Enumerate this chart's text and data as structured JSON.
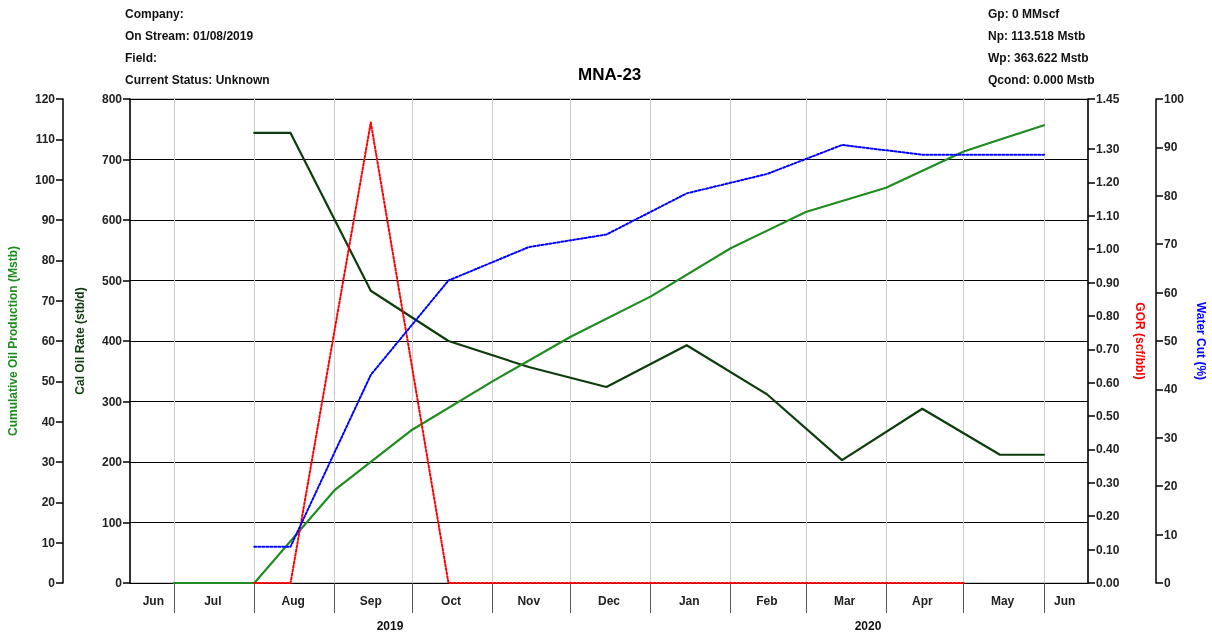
{
  "chart_data": [
    {
      "type": "line",
      "title": "MNA-23",
      "annotations": [
        "Company:",
        "On Stream: 01/08/2019",
        "Field:",
        "Current Status: Unknown",
        "Gp: 0 MMscf",
        "Np: 113.518 Mstb",
        "Wp: 363.622 Mstb",
        "Qcond: 0.000 Mstb",
        "2019",
        "2020"
      ],
      "ylabel": "Cal Oil Rate (stb/d)",
      "y2label": "GOR (scf/bbl)",
      "y3label": "Cumulative Oil Production (Mstb)",
      "xlim": [
        "2019-06-14",
        "2020-06-18"
      ],
      "xticks": [
        {
          "value": "2019-07-01",
          "label": null
        },
        {
          "value": "2019-08-01",
          "label": null
        },
        {
          "value": "2019-09-01",
          "label": null
        },
        {
          "value": "2019-10-01",
          "label": null
        },
        {
          "value": "2019-11-01",
          "label": null
        },
        {
          "value": "2019-12-01",
          "label": null
        },
        {
          "value": "2020-01-01",
          "label": null
        },
        {
          "value": "2020-02-01",
          "label": null
        },
        {
          "value": "2020-03-01",
          "label": null
        },
        {
          "value": "2020-04-01",
          "label": null
        },
        {
          "value": "2020-05-01",
          "label": null
        },
        {
          "value": "2020-06-01",
          "label": null
        },
        {
          "value": "2019-06-23",
          "label": "Jun"
        },
        {
          "value": "2019-07-16",
          "label": "Jul"
        },
        {
          "value": "2019-08-16",
          "label": "Aug"
        },
        {
          "value": "2019-09-15",
          "label": "Sep"
        },
        {
          "value": "2019-10-16",
          "label": "Oct"
        },
        {
          "value": "2019-11-15",
          "label": "Nov"
        },
        {
          "value": "2019-12-16",
          "label": "Dec"
        },
        {
          "value": "2020-01-16",
          "label": "Jan"
        },
        {
          "value": "2020-02-15",
          "label": "Feb"
        },
        {
          "value": "2020-03-16",
          "label": "Mar"
        },
        {
          "value": "2020-04-15",
          "label": "Apr"
        },
        {
          "value": "2020-05-16",
          "label": "May"
        },
        {
          "value": "2020-06-09",
          "label": "Jun"
        }
      ],
      "ylim": [
        0,
        800
      ],
      "yticks": [
        0,
        100,
        200,
        300,
        400,
        500,
        600,
        700,
        800
      ],
      "y2lim": [
        0,
        1.45
      ],
      "y2ticks": [
        {
          "value": 0,
          "label": "0.00"
        },
        {
          "value": 0.1,
          "label": "0.10"
        },
        {
          "value": 0.2,
          "label": "0.20"
        },
        {
          "value": 0.3,
          "label": "0.30"
        },
        {
          "value": 0.4,
          "label": "0.40"
        },
        {
          "value": 0.5,
          "label": "0.50"
        },
        {
          "value": 0.6,
          "label": "0.60"
        },
        {
          "value": 0.7,
          "label": "0.70"
        },
        {
          "value": 0.8,
          "label": "0.80"
        },
        {
          "value": 0.9,
          "label": "0.90"
        },
        {
          "value": 1,
          "label": "1.00"
        },
        {
          "value": 1.1,
          "label": "1.10"
        },
        {
          "value": 1.2,
          "label": "1.20"
        },
        {
          "value": 1.3,
          "label": "1.30"
        },
        {
          "value": 1.45,
          "label": "1.45"
        }
      ],
      "y3lim": [
        0,
        120
      ],
      "y3ticks": [
        0,
        10,
        20,
        30,
        40,
        50,
        60,
        70,
        80,
        90,
        100,
        110,
        120
      ],
      "grid": true,
      "marker": "none",
      "series": [
        {
          "color": "#0d3d0d",
          "axis": "y",
          "line_style": "solid",
          "x": [
            "2019-08-01",
            "2019-08-15",
            "2019-09-15",
            "2019-10-15",
            "2019-11-15",
            "2019-12-15",
            "2020-01-15",
            "2020-02-15",
            "2020-03-15",
            "2020-04-15",
            "2020-05-15",
            "2020-06-01"
          ],
          "values": [
            744,
            744,
            483,
            400,
            357,
            324,
            393,
            312,
            203,
            288,
            212,
            212
          ]
        },
        {
          "color": "#1e8c1e",
          "axis": "y3",
          "line_style": "solid",
          "x": [
            "2019-07-01",
            "2019-08-01",
            "2019-09-01",
            "2019-10-01",
            "2019-11-01",
            "2019-12-01",
            "2020-01-01",
            "2020-02-01",
            "2020-03-01",
            "2020-04-01",
            "2020-05-01",
            "2020-06-01"
          ],
          "values": [
            0,
            0,
            23,
            38,
            50,
            61,
            71,
            83,
            92,
            98,
            107,
            113.5
          ]
        },
        {
          "color": "#ff0000",
          "axis": "y2",
          "line_style": "dotted",
          "x": [
            "2019-08-01",
            "2019-08-15",
            "2019-09-15",
            "2019-10-15",
            "2020-05-01"
          ],
          "values": [
            0,
            0,
            1.38,
            0,
            0
          ]
        }
      ]
    },
    {
      "type": "line",
      "ylabel": "Water Cut (%)",
      "xlim": [
        "2019-06-14",
        "2020-06-18"
      ],
      "ylim": [
        0,
        100
      ],
      "yticks": [
        0,
        10,
        20,
        30,
        40,
        50,
        60,
        70,
        80,
        90,
        100
      ],
      "tick_labels": "y",
      "marker": "none",
      "series": [
        {
          "color": "#0000ff",
          "line_style": "dotted",
          "x": [
            "2019-08-01",
            "2019-08-15",
            "2019-09-15",
            "2019-10-15",
            "2019-11-15",
            "2019-12-15",
            "2020-01-15",
            "2020-02-15",
            "2020-03-15",
            "2020-04-15",
            "2020-06-01"
          ],
          "values": [
            7.5,
            7.5,
            43,
            62.5,
            69.4,
            72,
            80.5,
            84.5,
            90.5,
            88.5,
            88.5
          ]
        }
      ]
    }
  ]
}
